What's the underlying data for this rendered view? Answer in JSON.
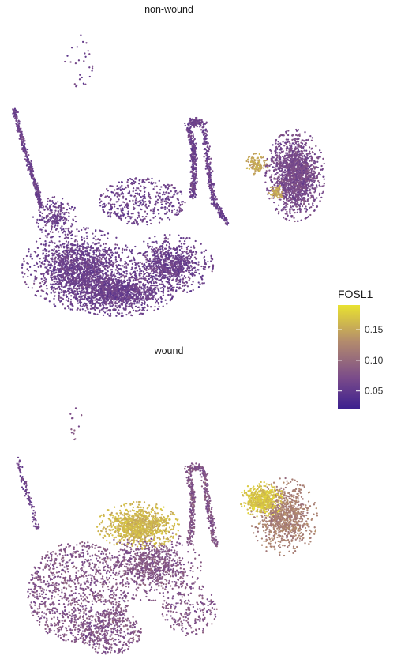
{
  "chart_data": {
    "type": "scatter",
    "grid": false,
    "legend_placement": "right",
    "legend": {
      "title": "FOSL1",
      "range": [
        0.02,
        0.19
      ],
      "ticks": [
        0.05,
        0.1,
        0.15
      ],
      "tick_labels": [
        "0.05",
        "0.10",
        "0.15"
      ],
      "colors": [
        "#3b1f8f",
        "#7a4b8a",
        "#b38b6d",
        "#e9e230"
      ]
    },
    "panels": [
      {
        "title": "non-wound",
        "clusters": [
          {
            "name": "left-arm",
            "value": 0.06
          },
          {
            "name": "bottom-bowl",
            "value": 0.06
          },
          {
            "name": "middle-stalk",
            "value": 0.06
          },
          {
            "name": "right-blob",
            "value": 0.07
          },
          {
            "name": "right-blob-left-edge",
            "value": 0.15
          },
          {
            "name": "top-scatter",
            "value": 0.06
          }
        ]
      },
      {
        "title": "wound",
        "clusters": [
          {
            "name": "left-arm",
            "value": 0.06
          },
          {
            "name": "bottom-bowl",
            "value": 0.08
          },
          {
            "name": "upper-hotspot",
            "value": 0.16
          },
          {
            "name": "middle-stalk",
            "value": 0.08
          },
          {
            "name": "right-blob",
            "value": 0.12
          },
          {
            "name": "right-blob-upper-left",
            "value": 0.17
          },
          {
            "name": "top-scatter",
            "value": 0.08
          }
        ]
      }
    ]
  }
}
